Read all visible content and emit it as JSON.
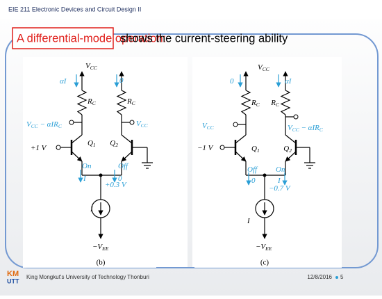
{
  "header": "EIE 211 Electronic Devices and Circuit Design II",
  "title": {
    "boxed": "A differential-mode operation:",
    "rest": "shows the current-steering ability"
  },
  "circuits": [
    {
      "caption": "(b)",
      "labels": [
        [
          "V",
          "CC"
        ],
        [
          "αI"
        ],
        [
          "0"
        ],
        [
          "R",
          "C"
        ],
        [
          "R",
          "C"
        ],
        [
          "V",
          "CC",
          " − αIR",
          "C"
        ],
        [
          "V",
          "CC"
        ],
        [
          "+1 V"
        ],
        [
          "Q",
          "1"
        ],
        [
          "Q",
          "2"
        ],
        [
          "On"
        ],
        [
          "I"
        ],
        [
          "Off"
        ],
        [
          "0"
        ],
        [
          "+0.3 V"
        ],
        [
          "I"
        ],
        [
          "−V",
          "EE"
        ]
      ]
    },
    {
      "caption": "(c)",
      "labels": [
        [
          "V",
          "CC"
        ],
        [
          "0"
        ],
        [
          "αI"
        ],
        [
          "R",
          "C"
        ],
        [
          "R",
          "C"
        ],
        [
          "V",
          "CC"
        ],
        [
          "V",
          "CC",
          " − αIR",
          "C"
        ],
        [
          "−1 V"
        ],
        [
          "Q",
          "1"
        ],
        [
          "Q",
          "2"
        ],
        [
          "Off"
        ],
        [
          "0"
        ],
        [
          "On"
        ],
        [
          "I"
        ],
        [
          "−0.7 V"
        ],
        [
          "I"
        ],
        [
          "−V",
          "EE"
        ]
      ]
    }
  ],
  "footer": {
    "logo": [
      "KM",
      "UTT"
    ],
    "institution": "King Mongkut's University of Technology Thonburi",
    "date": "12/8/2016",
    "page": "5"
  }
}
